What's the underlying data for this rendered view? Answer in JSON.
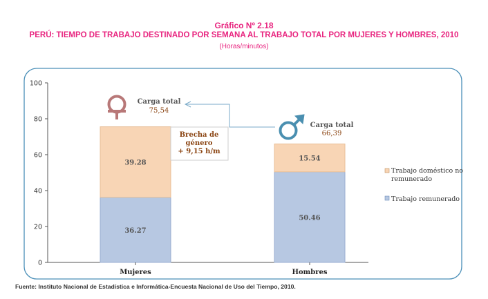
{
  "header": {
    "figure_number": "Gráfico  Nº 2.18",
    "title": "PERÚ: TIEMPO DE TRABAJO DESTINADO POR SEMANA  AL TRABAJO TOTAL POR MUJERES Y HOMBRES, 2010",
    "units": "(Horas/minutos)"
  },
  "source": "Fuente: Instituto Nacional de Estadística e Informática-Encuesta Nacional de Uso del Tiempo, 2010.",
  "colors": {
    "title": "#e8247f",
    "remunerado": "#b7c8e2",
    "domestico": "#f8d5b5",
    "frame": "#4a8fb8",
    "label": "#8b4513",
    "icon_female": "#b87878",
    "icon_male": "#4a8fb0"
  },
  "chart_data": {
    "type": "bar",
    "stacked": true,
    "categories": [
      "Mujeres",
      "Hombres"
    ],
    "series": [
      {
        "name": "Trabajo remunerado",
        "values": [
          36.27,
          50.46
        ]
      },
      {
        "name": "Trabajo doméstico no remunerado",
        "values": [
          39.28,
          15.54
        ]
      }
    ],
    "ylim": [
      0,
      100
    ],
    "yticks": [
      0,
      20,
      40,
      60,
      80,
      100
    ],
    "grid": false,
    "legend_position": "right",
    "annotations": {
      "carga_mujeres": {
        "label": "Carga total",
        "value": "75,54"
      },
      "carga_hombres": {
        "label": "Carga total",
        "value": "66,39"
      },
      "brecha": [
        "Brecha de",
        "género",
        "+ 9,15 h/m"
      ]
    },
    "legend": {
      "domestico": [
        "Trabajo doméstico no",
        "remunerado"
      ],
      "remunerado": [
        "Trabajo remunerado"
      ]
    }
  }
}
